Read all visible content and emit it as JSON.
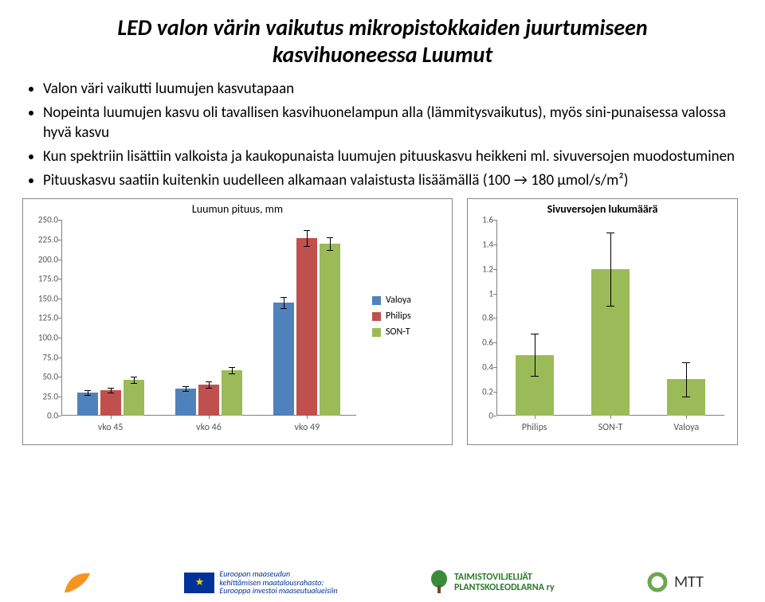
{
  "title_line1": "LED valon värin vaikutus mikropistokkaiden juurtumiseen",
  "title_line2": "kasvihuoneessa Luumut",
  "bullets": [
    "Valon väri vaikutti luumujen kasvutapaan",
    "Nopeinta luumujen kasvu oli tavallisen kasvihuonelampun alla (lämmitysvaikutus), myös sini-punaisessa valossa hyvä kasvu",
    "Kun spektriin lisättiin valkoista ja kaukopunaista luumujen pituuskasvu heikkeni ml. sivuversojen muodostuminen",
    "Pituuskasvu saatiin kuitenkin uudelleen alkamaan valaistusta lisäämällä (100 → 180 µmol/s/m²)"
  ],
  "chart1": {
    "title": "Luumun pituus, mm",
    "ylim": [
      0,
      250
    ],
    "ytick_step": 25,
    "yticks": [
      "0.0",
      "25.0",
      "50.0",
      "75.0",
      "100.0",
      "125.0",
      "150.0",
      "175.0",
      "200.0",
      "225.0",
      "250.0"
    ],
    "groups": [
      "vko 45",
      "vko 46",
      "vko 49"
    ],
    "series": [
      {
        "name": "Valoya",
        "color": "#4f81bd"
      },
      {
        "name": "Philips",
        "color": "#c0504d"
      },
      {
        "name": "SON-T",
        "color": "#9bbb59"
      }
    ],
    "values": [
      [
        30,
        33,
        46
      ],
      [
        35,
        40,
        58
      ],
      [
        145,
        227,
        220
      ]
    ],
    "errors": [
      [
        3,
        3,
        4
      ],
      [
        3,
        4,
        4
      ],
      [
        7,
        10,
        8
      ]
    ]
  },
  "chart2": {
    "title": "Sivuversojen lukumäärä",
    "ylim": [
      0,
      1.6
    ],
    "yticks": [
      "0",
      "0.2",
      "0.4",
      "0.6",
      "0.8",
      "1",
      "1.2",
      "1.4",
      "1.6"
    ],
    "categories": [
      "Philips",
      "SON-T",
      "Valoya"
    ],
    "color": "#9bbb59",
    "values": [
      0.5,
      1.2,
      0.3
    ],
    "errors": [
      0.17,
      0.3,
      0.14
    ]
  },
  "footer": {
    "eu_text1": "Euroopan maaseudun",
    "eu_text2": "kehittämisen maatalousrahasto:",
    "eu_text3": "Eurooppa investoi maaseutualueisiin",
    "taimi1": "TAIMISTOVILJELIJÄT",
    "taimi2": "PLANTSKOLEODLARNA ry",
    "mtt": "MTT"
  },
  "colors": {
    "border": "#888888",
    "axis": "#808080",
    "text": "#000000"
  }
}
